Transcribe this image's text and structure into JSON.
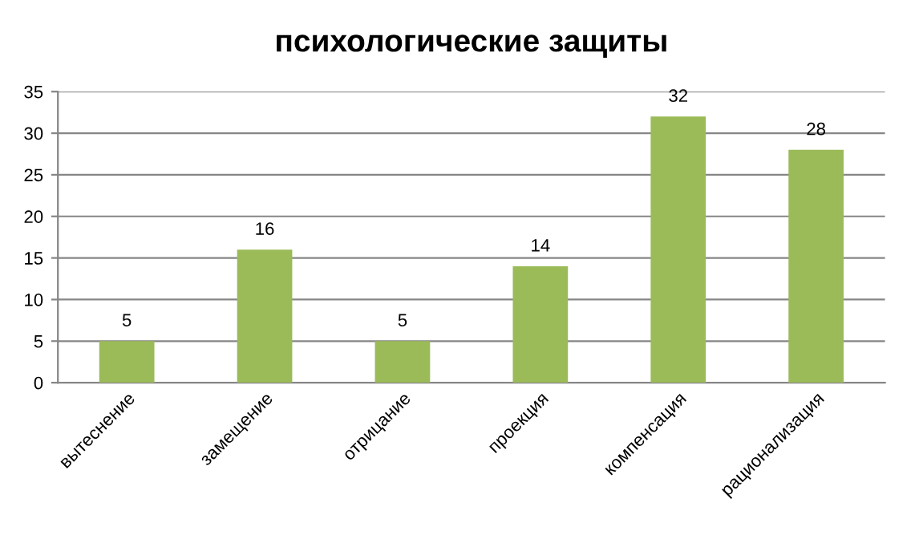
{
  "chart_data": {
    "type": "bar",
    "title": "психологические защиты",
    "categories": [
      "вытеснение",
      "замещение",
      "отрицание",
      "проекция",
      "компенсация",
      "рационализация"
    ],
    "values": [
      5,
      16,
      5,
      14,
      32,
      28
    ],
    "color": "#9bbb59",
    "ylim": [
      0,
      35
    ],
    "yticks": [
      0,
      5,
      10,
      15,
      20,
      25,
      30,
      35
    ],
    "grid": "y",
    "data_labels": true
  }
}
